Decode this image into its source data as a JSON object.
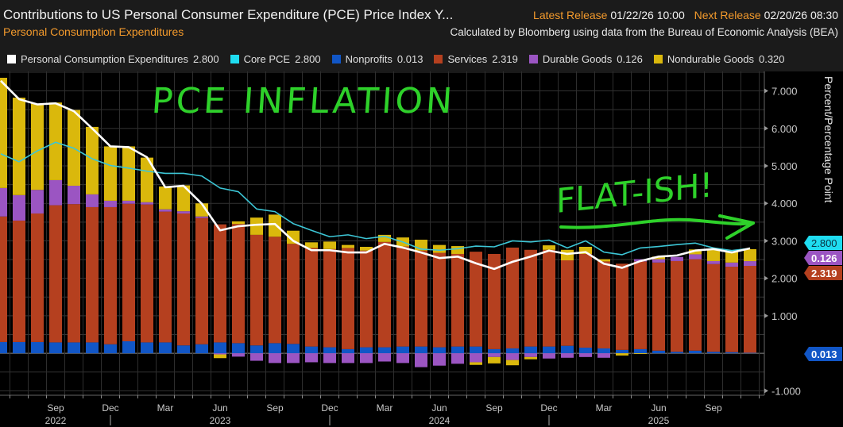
{
  "header": {
    "title": "Contributions to US Personal Consumer Expenditure (PCE) Price Index Y...",
    "subtitle": "Personal Consumption Expenditures",
    "latest_release_label": "Latest Release",
    "latest_release_value": "01/22/26 10:00",
    "next_release_label": "Next Release",
    "next_release_value": "02/20/26 08:30",
    "source": "Calculated by Bloomberg using data from the Bureau of Economic Analysis (BEA)"
  },
  "legend": [
    {
      "name": "Personal Consumption Expenditures",
      "value": "2.800",
      "color": "#ffffff"
    },
    {
      "name": "Core PCE",
      "value": "2.800",
      "color": "#1fdcf0"
    },
    {
      "name": "Nonprofits",
      "value": "0.013",
      "color": "#1156c6"
    },
    {
      "name": "Services",
      "value": "2.319",
      "color": "#b5401f"
    },
    {
      "name": "Durable Goods",
      "value": "0.126",
      "color": "#9b55c2"
    },
    {
      "name": "Nondurable Goods",
      "value": "0.320",
      "color": "#dab80c"
    }
  ],
  "annotations": {
    "handwritten_1": "PCE INFLATION",
    "handwritten_2": "FLAT-ISH!",
    "color": "#2ed12a"
  },
  "value_tags": [
    {
      "series": "Core PCE",
      "value": "2.800",
      "color": "#1fdcf0"
    },
    {
      "series": "Services",
      "value": "2.319",
      "color": "#b5401f"
    },
    {
      "series": "Durable Goods",
      "value": "0.126",
      "color": "#9b55c2"
    },
    {
      "series": "Nonprofits",
      "value": "0.013",
      "color": "#1156c6"
    }
  ],
  "chart_data": {
    "type": "bar",
    "stacked": true,
    "title": "Contributions to US Personal Consumer Expenditure (PCE) Price Index Y...",
    "ylabel": "Percent/Percentage Point",
    "ylim": [
      -1.12,
      7.52
    ],
    "y_ticks": [
      "7.000",
      "6.000",
      "5.000",
      "4.000",
      "3.000",
      "2.000",
      "1.000",
      "-1.000"
    ],
    "grid": true,
    "y_axis_side": "right",
    "x_tick_labels": [
      {
        "month": "Sep",
        "year": "2022",
        "x": "2022-09"
      },
      {
        "month": "Dec",
        "year": "",
        "x": "2022-12"
      },
      {
        "month": "Mar",
        "year": "",
        "x": "2023-03"
      },
      {
        "month": "Jun",
        "year": "2023",
        "x": "2023-06"
      },
      {
        "month": "Sep",
        "year": "",
        "x": "2023-09"
      },
      {
        "month": "Dec",
        "year": "",
        "x": "2023-12"
      },
      {
        "month": "Mar",
        "year": "",
        "x": "2024-03"
      },
      {
        "month": "Jun",
        "year": "2024",
        "x": "2024-06"
      },
      {
        "month": "Sep",
        "year": "",
        "x": "2024-09"
      },
      {
        "month": "Dec",
        "year": "",
        "x": "2024-12"
      },
      {
        "month": "Mar",
        "year": "",
        "x": "2025-03"
      },
      {
        "month": "Jun",
        "year": "2025",
        "x": "2025-06"
      },
      {
        "month": "Sep",
        "year": "",
        "x": "2025-09"
      }
    ],
    "x": [
      "2022-06",
      "2022-07",
      "2022-08",
      "2022-09",
      "2022-10",
      "2022-11",
      "2022-12",
      "2023-01",
      "2023-02",
      "2023-03",
      "2023-04",
      "2023-05",
      "2023-06",
      "2023-07",
      "2023-08",
      "2023-09",
      "2023-10",
      "2023-11",
      "2023-12",
      "2024-01",
      "2024-02",
      "2024-03",
      "2024-04",
      "2024-05",
      "2024-06",
      "2024-07",
      "2024-08",
      "2024-09",
      "2024-10",
      "2024-11",
      "2024-12",
      "2025-01",
      "2025-02",
      "2025-03",
      "2025-04",
      "2025-05",
      "2025-06",
      "2025-07",
      "2025-08",
      "2025-09",
      "2025-10",
      "2025-11"
    ],
    "bar_series": [
      {
        "name": "Nonprofits",
        "color": "#1156c6",
        "values": [
          0.3,
          0.3,
          0.3,
          0.29,
          0.29,
          0.29,
          0.24,
          0.32,
          0.29,
          0.29,
          0.21,
          0.24,
          0.29,
          0.27,
          0.21,
          0.27,
          0.25,
          0.18,
          0.16,
          0.11,
          0.16,
          0.16,
          0.18,
          0.18,
          0.16,
          0.18,
          0.18,
          0.11,
          0.13,
          0.18,
          0.18,
          0.2,
          0.15,
          0.13,
          0.09,
          0.11,
          0.07,
          0.04,
          0.07,
          0.04,
          0.03,
          0.013
        ]
      },
      {
        "name": "Services",
        "color": "#b5401f",
        "values": [
          3.35,
          3.24,
          3.43,
          3.66,
          3.69,
          3.61,
          3.66,
          3.67,
          3.68,
          3.49,
          3.52,
          3.37,
          3.15,
          3.18,
          2.95,
          2.84,
          2.67,
          2.63,
          2.62,
          2.7,
          2.58,
          2.81,
          2.67,
          2.56,
          2.52,
          2.47,
          2.53,
          2.54,
          2.69,
          2.58,
          2.58,
          2.28,
          2.5,
          2.32,
          2.3,
          2.34,
          2.35,
          2.42,
          2.44,
          2.34,
          2.28,
          2.319
        ]
      },
      {
        "name": "Durable Goods",
        "color": "#9b55c2",
        "values": [
          0.76,
          0.68,
          0.63,
          0.67,
          0.49,
          0.34,
          0.17,
          0.08,
          0.06,
          0.06,
          0.06,
          0.04,
          -0.03,
          -0.09,
          -0.2,
          -0.26,
          -0.26,
          -0.24,
          -0.26,
          -0.26,
          -0.26,
          -0.22,
          -0.26,
          -0.37,
          -0.33,
          -0.28,
          -0.24,
          -0.1,
          -0.18,
          -0.1,
          -0.14,
          -0.12,
          -0.1,
          -0.12,
          0.0,
          0.06,
          0.09,
          0.11,
          0.13,
          0.08,
          0.11,
          0.126
        ]
      },
      {
        "name": "Nondurable Goods",
        "color": "#dab80c",
        "values": [
          2.94,
          2.6,
          2.3,
          2.07,
          2.02,
          1.8,
          1.45,
          1.45,
          1.19,
          0.61,
          0.69,
          0.35,
          -0.1,
          0.07,
          0.46,
          0.59,
          0.35,
          0.15,
          0.2,
          0.08,
          0.1,
          0.19,
          0.24,
          0.29,
          0.21,
          0.21,
          -0.07,
          -0.17,
          -0.14,
          -0.06,
          0.12,
          0.28,
          0.19,
          0.06,
          -0.06,
          -0.02,
          0.07,
          0.0,
          0.13,
          0.31,
          0.29,
          0.32
        ]
      }
    ],
    "line_series": [
      {
        "name": "Personal Consumption Expenditures",
        "color": "#ffffff",
        "values": [
          7.27,
          6.78,
          6.64,
          6.67,
          6.46,
          6.0,
          5.52,
          5.5,
          5.23,
          4.43,
          4.47,
          3.99,
          3.28,
          3.39,
          3.43,
          3.45,
          3.0,
          2.75,
          2.75,
          2.69,
          2.69,
          2.92,
          2.82,
          2.69,
          2.54,
          2.58,
          2.4,
          2.25,
          2.44,
          2.58,
          2.74,
          2.65,
          2.7,
          2.39,
          2.28,
          2.46,
          2.58,
          2.61,
          2.74,
          2.78,
          2.69,
          2.8
        ]
      },
      {
        "name": "Core PCE",
        "color": "#3cc6d6",
        "values": [
          5.32,
          5.11,
          5.4,
          5.63,
          5.47,
          5.19,
          5.01,
          4.94,
          4.86,
          4.8,
          4.8,
          4.73,
          4.41,
          4.31,
          3.85,
          3.78,
          3.46,
          3.28,
          3.11,
          3.16,
          3.06,
          3.12,
          2.97,
          2.78,
          2.75,
          2.79,
          2.86,
          2.84,
          3.0,
          2.97,
          3.02,
          2.81,
          3.0,
          2.7,
          2.63,
          2.81,
          2.85,
          2.9,
          2.94,
          2.81,
          2.74,
          2.8
        ]
      }
    ]
  }
}
